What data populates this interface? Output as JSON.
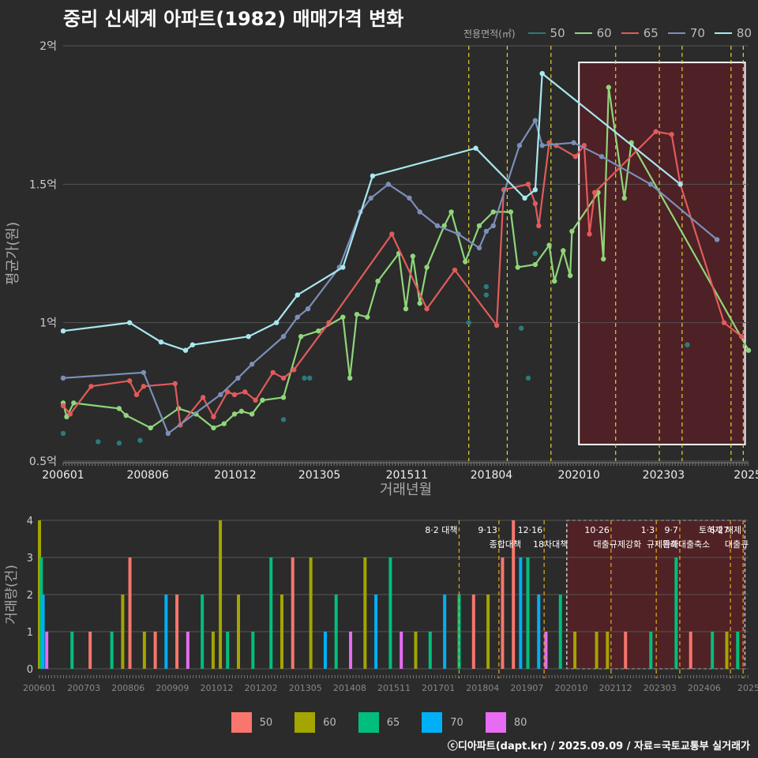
{
  "title": "중리 신세계 아파트(1982) 매매가격 변화",
  "footer": "ⓒ디아파트(dapt.kr) / 2025.09.09 / 자료=국토교통부 실거래가",
  "legend_top": {
    "title": "전용면적(㎡)",
    "items": [
      {
        "label": "50",
        "color": "#2b7b7b"
      },
      {
        "label": "60",
        "color": "#8fd67a"
      },
      {
        "label": "65",
        "color": "#e15b5b"
      },
      {
        "label": "70",
        "color": "#7b8fb8"
      },
      {
        "label": "80",
        "color": "#a8e8ef"
      }
    ]
  },
  "legend_bottom": {
    "items": [
      {
        "label": "50",
        "color": "#f8766d"
      },
      {
        "label": "60",
        "color": "#a3a500"
      },
      {
        "label": "65",
        "color": "#00bf7d"
      },
      {
        "label": "70",
        "color": "#00b0f6"
      },
      {
        "label": "80",
        "color": "#e76bf3"
      }
    ]
  },
  "chart_data": [
    {
      "type": "line",
      "title": "중리 신세계 아파트(1982) 매매가격 변화",
      "xlabel": "거래년월",
      "ylabel": "평균가(원)",
      "xlim": [
        2006.0,
        2025.6
      ],
      "ylim": [
        0.5,
        2.0
      ],
      "x_ticks": [
        {
          "label": "200601",
          "value": 2006.0
        },
        {
          "label": "200806",
          "value": 2008.42
        },
        {
          "label": "201012",
          "value": 2010.92
        },
        {
          "label": "201305",
          "value": 2013.33
        },
        {
          "label": "201511",
          "value": 2015.83
        },
        {
          "label": "201804",
          "value": 2018.25
        },
        {
          "label": "202010",
          "value": 2020.75
        },
        {
          "label": "202303",
          "value": 2023.17
        },
        {
          "label": "2025",
          "value": 2025.58
        }
      ],
      "y_ticks": [
        {
          "label": "0.5억",
          "value": 0.5
        },
        {
          "label": "1억",
          "value": 1.0
        },
        {
          "label": "1.5억",
          "value": 1.5
        },
        {
          "label": "2억",
          "value": 2.0
        }
      ],
      "policy_lines": [
        2017.6,
        2018.7,
        2019.95,
        2021.8,
        2023.05,
        2023.7,
        2025.1,
        2025.45
      ],
      "highlight_range": [
        2020.75,
        2025.5
      ],
      "highlight_ylim": [
        0.56,
        1.94
      ],
      "series": [
        {
          "name": "50",
          "color": "#2b7b7b",
          "points": [
            [
              2006.0,
              0.6
            ],
            [
              2007.0,
              0.57
            ],
            [
              2007.6,
              0.565
            ],
            [
              2008.2,
              0.575
            ],
            [
              2012.3,
              0.65
            ],
            [
              2012.9,
              0.8
            ],
            [
              2013.05,
              0.8
            ],
            [
              2017.6,
              1.0
            ],
            [
              2018.1,
              1.1
            ],
            [
              2018.1,
              1.13
            ],
            [
              2019.3,
              0.8
            ],
            [
              2019.1,
              0.98
            ],
            [
              2019.5,
              1.25
            ],
            [
              2023.85,
              0.92
            ]
          ],
          "line": [
            [
              2023.85,
              0.92
            ]
          ]
        },
        {
          "name": "60",
          "color": "#8fd67a",
          "points": [],
          "line": [
            [
              2006.0,
              0.71
            ],
            [
              2006.1,
              0.66
            ],
            [
              2006.3,
              0.71
            ],
            [
              2007.6,
              0.69
            ],
            [
              2007.8,
              0.665
            ],
            [
              2008.5,
              0.62
            ],
            [
              2009.3,
              0.69
            ],
            [
              2009.8,
              0.67
            ],
            [
              2010.3,
              0.62
            ],
            [
              2010.6,
              0.635
            ],
            [
              2010.9,
              0.67
            ],
            [
              2011.1,
              0.68
            ],
            [
              2011.4,
              0.67
            ],
            [
              2011.7,
              0.72
            ],
            [
              2012.3,
              0.73
            ],
            [
              2012.8,
              0.95
            ],
            [
              2013.3,
              0.97
            ],
            [
              2014.0,
              1.02
            ],
            [
              2014.2,
              0.8
            ],
            [
              2014.4,
              1.03
            ],
            [
              2014.7,
              1.02
            ],
            [
              2015.0,
              1.15
            ],
            [
              2015.6,
              1.25
            ],
            [
              2015.8,
              1.05
            ],
            [
              2016.0,
              1.24
            ],
            [
              2016.2,
              1.07
            ],
            [
              2016.4,
              1.2
            ],
            [
              2016.9,
              1.35
            ],
            [
              2017.1,
              1.4
            ],
            [
              2017.5,
              1.22
            ],
            [
              2017.9,
              1.35
            ],
            [
              2018.3,
              1.4
            ],
            [
              2018.8,
              1.4
            ],
            [
              2019.0,
              1.2
            ],
            [
              2019.5,
              1.21
            ],
            [
              2019.9,
              1.28
            ],
            [
              2020.05,
              1.15
            ],
            [
              2020.3,
              1.26
            ],
            [
              2020.5,
              1.17
            ],
            [
              2020.55,
              1.33
            ],
            [
              2021.3,
              1.47
            ],
            [
              2021.45,
              1.23
            ],
            [
              2021.6,
              1.85
            ],
            [
              2022.05,
              1.45
            ],
            [
              2022.25,
              1.65
            ],
            [
              2025.6,
              0.9
            ]
          ]
        },
        {
          "name": "65",
          "color": "#e15b5b",
          "points": [],
          "line": [
            [
              2006.0,
              0.7
            ],
            [
              2006.2,
              0.67
            ],
            [
              2006.8,
              0.77
            ],
            [
              2007.9,
              0.79
            ],
            [
              2008.1,
              0.74
            ],
            [
              2008.3,
              0.77
            ],
            [
              2009.2,
              0.78
            ],
            [
              2009.35,
              0.63
            ],
            [
              2010.0,
              0.73
            ],
            [
              2010.3,
              0.66
            ],
            [
              2010.7,
              0.75
            ],
            [
              2010.9,
              0.74
            ],
            [
              2011.2,
              0.75
            ],
            [
              2011.5,
              0.72
            ],
            [
              2012.0,
              0.82
            ],
            [
              2012.3,
              0.8
            ],
            [
              2012.6,
              0.83
            ],
            [
              2013.6,
              1.0
            ],
            [
              2015.4,
              1.32
            ],
            [
              2016.4,
              1.05
            ],
            [
              2017.2,
              1.19
            ],
            [
              2018.4,
              0.99
            ],
            [
              2018.6,
              1.48
            ],
            [
              2019.3,
              1.5
            ],
            [
              2019.5,
              1.43
            ],
            [
              2019.6,
              1.35
            ],
            [
              2019.9,
              1.65
            ],
            [
              2020.1,
              1.64
            ],
            [
              2020.65,
              1.6
            ],
            [
              2020.9,
              1.64
            ],
            [
              2021.05,
              1.32
            ],
            [
              2021.2,
              1.47
            ],
            [
              2022.95,
              1.69
            ],
            [
              2023.4,
              1.68
            ],
            [
              2023.65,
              1.5
            ],
            [
              2024.9,
              1.0
            ],
            [
              2025.4,
              0.95
            ]
          ]
        },
        {
          "name": "70",
          "color": "#7b8fb8",
          "points": [],
          "line": [
            [
              2006.0,
              0.8
            ],
            [
              2008.3,
              0.82
            ],
            [
              2009.0,
              0.6
            ],
            [
              2010.5,
              0.74
            ],
            [
              2011.0,
              0.8
            ],
            [
              2011.4,
              0.85
            ],
            [
              2012.3,
              0.95
            ],
            [
              2012.7,
              1.02
            ],
            [
              2013.0,
              1.05
            ],
            [
              2013.9,
              1.2
            ],
            [
              2014.5,
              1.4
            ],
            [
              2014.8,
              1.45
            ],
            [
              2015.3,
              1.5
            ],
            [
              2015.9,
              1.45
            ],
            [
              2016.2,
              1.4
            ],
            [
              2016.7,
              1.35
            ],
            [
              2017.3,
              1.32
            ],
            [
              2017.9,
              1.27
            ],
            [
              2018.1,
              1.33
            ],
            [
              2018.3,
              1.35
            ],
            [
              2019.05,
              1.64
            ],
            [
              2019.5,
              1.73
            ],
            [
              2019.7,
              1.64
            ],
            [
              2020.6,
              1.65
            ],
            [
              2021.4,
              1.6
            ],
            [
              2022.8,
              1.5
            ],
            [
              2024.7,
              1.3
            ]
          ]
        },
        {
          "name": "80",
          "color": "#a8e8ef",
          "points": [],
          "line": [
            [
              2006.0,
              0.97
            ],
            [
              2007.9,
              1.0
            ],
            [
              2008.8,
              0.93
            ],
            [
              2009.5,
              0.9
            ],
            [
              2009.7,
              0.92
            ],
            [
              2011.3,
              0.95
            ],
            [
              2012.1,
              1.0
            ],
            [
              2012.7,
              1.1
            ],
            [
              2014.0,
              1.2
            ],
            [
              2014.85,
              1.53
            ],
            [
              2017.8,
              1.63
            ],
            [
              2019.2,
              1.45
            ],
            [
              2019.5,
              1.48
            ],
            [
              2019.7,
              1.9
            ],
            [
              2023.65,
              1.5
            ]
          ]
        }
      ]
    },
    {
      "type": "bar",
      "ylabel": "거래량(건)",
      "ylim": [
        0,
        4
      ],
      "y_ticks": [
        "0",
        "1",
        "2",
        "3",
        "4"
      ],
      "x_ticks": [
        "200601",
        "200703",
        "200806",
        "200909",
        "201012",
        "201202",
        "201305",
        "201408",
        "201511",
        "201701",
        "201804",
        "201907",
        "202010",
        "202112",
        "202303",
        "202406",
        "2025"
      ],
      "policy_annotations": [
        {
          "label": "8·2 대책",
          "x": 2017.6
        },
        {
          "label": "9·13",
          "x": 2018.7,
          "sub": "종합대책"
        },
        {
          "label": "12·16",
          "x": 2019.95,
          "sub": "18차대책"
        },
        {
          "label": "10·26",
          "x": 2021.8,
          "sub": "대출규제강화"
        },
        {
          "label": "1·3",
          "x": 2023.05,
          "sub": "규제완화"
        },
        {
          "label": "9·7",
          "x": 2023.7,
          "sub": "특례대출축소"
        },
        {
          "label": "6·27",
          "x": 2025.1,
          "sub": "대출규"
        },
        {
          "label": "토허제 해제",
          "x": 2025.45
        }
      ],
      "highlight_range": [
        2020.75,
        2025.5
      ],
      "bars": [
        [
          2006.0,
          "60",
          4
        ],
        [
          2006.05,
          "65",
          3
        ],
        [
          2006.1,
          "70",
          2
        ],
        [
          2006.2,
          "80",
          1
        ],
        [
          2006.9,
          "65",
          1
        ],
        [
          2007.4,
          "50",
          1
        ],
        [
          2008.0,
          "65",
          1
        ],
        [
          2008.3,
          "60",
          2
        ],
        [
          2008.5,
          "50",
          3
        ],
        [
          2008.9,
          "60",
          1
        ],
        [
          2009.2,
          "50",
          1
        ],
        [
          2009.5,
          "70",
          2
        ],
        [
          2009.8,
          "50",
          2
        ],
        [
          2010.1,
          "80",
          1
        ],
        [
          2010.5,
          "65",
          2
        ],
        [
          2010.8,
          "60",
          1
        ],
        [
          2011.0,
          "60",
          4
        ],
        [
          2011.2,
          "65",
          1
        ],
        [
          2011.5,
          "60",
          2
        ],
        [
          2011.9,
          "65",
          1
        ],
        [
          2012.4,
          "65",
          3
        ],
        [
          2012.7,
          "60",
          2
        ],
        [
          2013.0,
          "50",
          3
        ],
        [
          2013.5,
          "60",
          3
        ],
        [
          2013.9,
          "70",
          1
        ],
        [
          2014.2,
          "65",
          2
        ],
        [
          2014.6,
          "80",
          1
        ],
        [
          2015.0,
          "60",
          3
        ],
        [
          2015.3,
          "70",
          2
        ],
        [
          2015.7,
          "65",
          3
        ],
        [
          2016.0,
          "80",
          1
        ],
        [
          2016.4,
          "60",
          1
        ],
        [
          2016.8,
          "65",
          1
        ],
        [
          2017.2,
          "70",
          2
        ],
        [
          2017.6,
          "65",
          2
        ],
        [
          2018.0,
          "50",
          2
        ],
        [
          2018.4,
          "60",
          2
        ],
        [
          2018.8,
          "50",
          3
        ],
        [
          2019.1,
          "50",
          4
        ],
        [
          2019.3,
          "70",
          3
        ],
        [
          2019.5,
          "65",
          3
        ],
        [
          2019.8,
          "70",
          2
        ],
        [
          2020.0,
          "80",
          1
        ],
        [
          2020.4,
          "65",
          2
        ],
        [
          2020.8,
          "60",
          1
        ],
        [
          2021.4,
          "60",
          1
        ],
        [
          2021.7,
          "60",
          1
        ],
        [
          2022.2,
          "50",
          1
        ],
        [
          2022.9,
          "65",
          1
        ],
        [
          2023.6,
          "65",
          3
        ],
        [
          2024.0,
          "50",
          1
        ],
        [
          2024.6,
          "65",
          1
        ],
        [
          2025.0,
          "60",
          1
        ],
        [
          2025.3,
          "65",
          1
        ]
      ]
    }
  ]
}
